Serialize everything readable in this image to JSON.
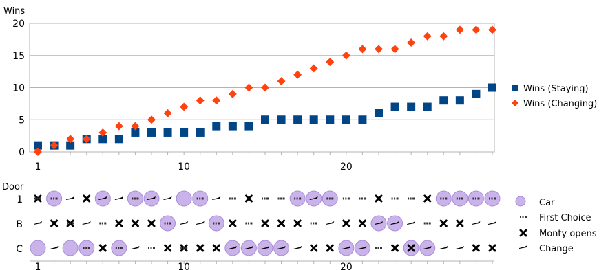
{
  "chart_data": [
    {
      "type": "scatter",
      "ylabel": "Wins",
      "xlabel": "",
      "xlim": [
        1,
        29
      ],
      "ylim": [
        0,
        20
      ],
      "xticks": [
        1,
        10,
        20
      ],
      "yticks": [
        0,
        5,
        10,
        15,
        20
      ],
      "grid": "horizontal",
      "legend_position": "right",
      "x": [
        1,
        2,
        3,
        4,
        5,
        6,
        7,
        8,
        9,
        10,
        11,
        12,
        13,
        14,
        15,
        16,
        17,
        18,
        19,
        20,
        21,
        22,
        23,
        24,
        25,
        26,
        27,
        28,
        29
      ],
      "series": [
        {
          "name": "Wins (Staying)",
          "marker": "square",
          "color": "#004586",
          "values": [
            1,
            1,
            1,
            2,
            2,
            2,
            3,
            3,
            3,
            3,
            3,
            4,
            4,
            4,
            5,
            5,
            5,
            5,
            5,
            5,
            5,
            6,
            7,
            7,
            7,
            8,
            8,
            9,
            10
          ]
        },
        {
          "name": "Wins (Changing)",
          "marker": "diamond",
          "color": "#ff420e",
          "values": [
            0,
            1,
            2,
            2,
            3,
            4,
            4,
            5,
            6,
            7,
            8,
            8,
            9,
            10,
            10,
            11,
            12,
            13,
            14,
            15,
            16,
            16,
            16,
            17,
            18,
            18,
            19,
            19,
            19
          ]
        }
      ]
    },
    {
      "type": "table",
      "title": "",
      "ylabel": "Door",
      "row_labels": [
        "1",
        "B",
        "C"
      ],
      "xticks": [
        1,
        10,
        20
      ],
      "legend": [
        {
          "label": "Car",
          "icon": "car-circle-icon"
        },
        {
          "label": "First Choice",
          "icon": "first-choice-icon"
        },
        {
          "label": "Monty opens",
          "icon": "monty-opens-x-icon"
        },
        {
          "label": "Change",
          "icon": "change-arrow-icon"
        }
      ],
      "car_door": [
        "C",
        "1",
        "C",
        "C",
        "1",
        "C",
        "1",
        "1",
        "B",
        "1",
        "1",
        "B",
        "C",
        "C",
        "C",
        "C",
        "1",
        "1",
        "1",
        "C",
        "C",
        "B",
        "B",
        "C",
        "C",
        "1",
        "1",
        "1",
        "1"
      ],
      "first_choice": [
        "1",
        "1",
        "B",
        "C",
        "B",
        "C",
        "1",
        "C",
        "B",
        "C",
        "1",
        "B",
        "1",
        "B",
        "1",
        "1",
        "1",
        "B",
        "1",
        "1",
        "1",
        "C",
        "1",
        "1",
        "B",
        "1",
        "1",
        "1",
        "1"
      ],
      "monty_opens": [
        "1",
        "B",
        "B",
        "1",
        "C",
        "B",
        "B",
        "B",
        "C",
        "C",
        "C",
        "C",
        "B",
        "1",
        "B",
        "B",
        "B",
        "C",
        "C",
        "B",
        "B",
        "1",
        "C",
        "C",
        "1",
        "B",
        "B",
        "C",
        "C"
      ],
      "change": [
        "B",
        "C",
        "1",
        "B",
        "1",
        "1",
        "C",
        "1",
        "1",
        "B",
        "B",
        "1",
        "C",
        "C",
        "C",
        "C",
        "C",
        "1",
        "B",
        "C",
        "C",
        "B",
        "B",
        "B",
        "C",
        "C",
        "C",
        "B",
        "B"
      ],
      "colors": {
        "car": "#c9b3ea",
        "car_stroke": "#a88cd8"
      }
    }
  ]
}
